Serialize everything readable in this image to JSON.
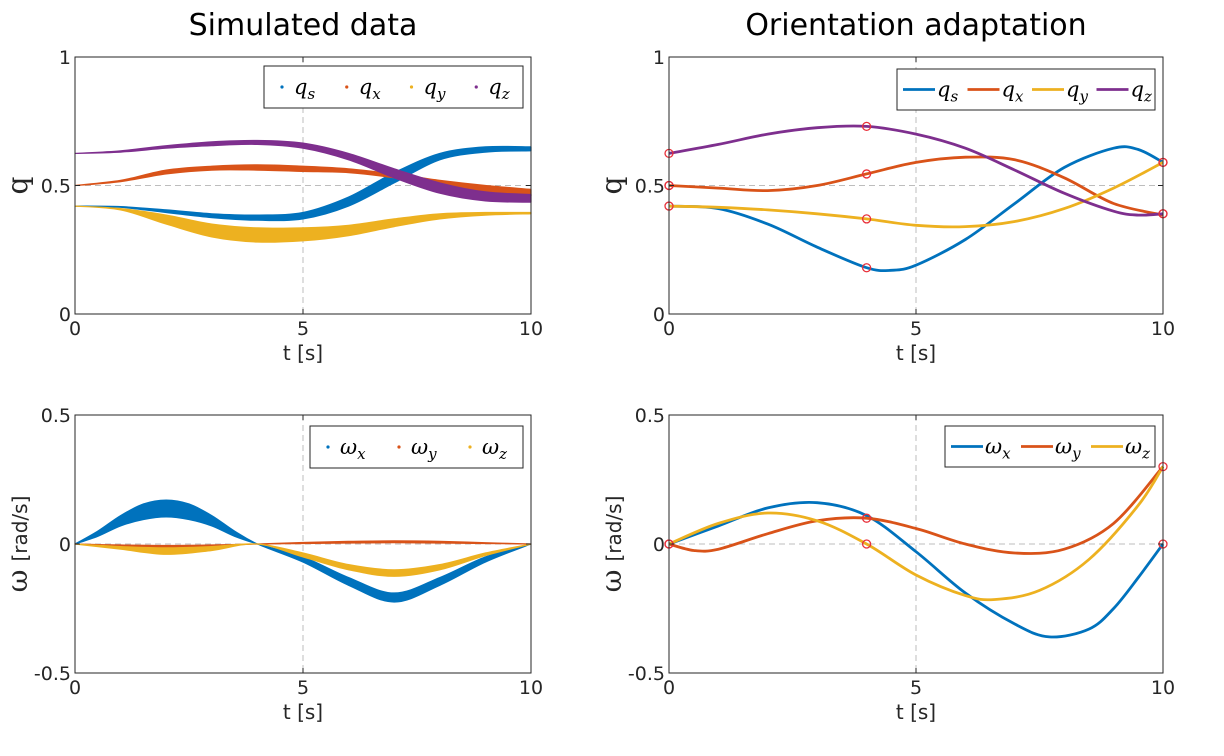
{
  "figure": {
    "column_titles": [
      "Simulated data",
      "Orientation adaptation"
    ]
  },
  "colors": {
    "s": "#0072BD",
    "x": "#D95319",
    "y": "#EDB120",
    "z": "#7E2F8E",
    "marker": "#E8303A",
    "axis": "#262626",
    "grid": "#BDBDBD"
  },
  "chart_data": [
    {
      "id": "sim_q",
      "type": "line",
      "style": "band",
      "xlabel": "t [s]",
      "ylabel": "q",
      "ylabel_unit": "",
      "xlim": [
        0,
        10
      ],
      "ylim": [
        0,
        1
      ],
      "xticks": [
        0,
        5,
        10
      ],
      "yticks": [
        0,
        0.5,
        1
      ],
      "tick_labels_y": [
        "0",
        "0.5",
        "1"
      ],
      "grid_x": [
        5
      ],
      "grid_y": [
        0.5
      ],
      "legend": {
        "position": "top-right",
        "style": "dot"
      },
      "series": [
        {
          "name": "q",
          "sub": "s",
          "color_key": "s",
          "x": [
            0,
            1,
            2,
            3,
            4,
            5,
            6,
            7,
            8,
            9,
            10
          ],
          "y_low": [
            0.42,
            0.415,
            0.395,
            0.375,
            0.365,
            0.37,
            0.42,
            0.51,
            0.6,
            0.63,
            0.635
          ],
          "y_high": [
            0.42,
            0.418,
            0.405,
            0.39,
            0.385,
            0.395,
            0.455,
            0.55,
            0.625,
            0.65,
            0.65
          ]
        },
        {
          "name": "q",
          "sub": "x",
          "color_key": "x",
          "x": [
            0,
            1,
            2,
            3,
            4,
            5,
            6,
            7,
            8,
            9,
            10
          ],
          "y_low": [
            0.5,
            0.515,
            0.545,
            0.56,
            0.56,
            0.555,
            0.55,
            0.53,
            0.5,
            0.475,
            0.46
          ],
          "y_high": [
            0.5,
            0.52,
            0.56,
            0.575,
            0.58,
            0.575,
            0.565,
            0.545,
            0.52,
            0.5,
            0.485
          ]
        },
        {
          "name": "q",
          "sub": "y",
          "color_key": "y",
          "x": [
            0,
            1,
            2,
            3,
            4,
            5,
            6,
            7,
            8,
            9,
            10
          ],
          "y_low": [
            0.42,
            0.405,
            0.35,
            0.3,
            0.28,
            0.285,
            0.305,
            0.34,
            0.37,
            0.385,
            0.39
          ],
          "y_high": [
            0.42,
            0.41,
            0.385,
            0.35,
            0.335,
            0.335,
            0.345,
            0.37,
            0.39,
            0.395,
            0.395
          ]
        },
        {
          "name": "q",
          "sub": "z",
          "color_key": "z",
          "x": [
            0,
            1,
            2,
            3,
            4,
            5,
            6,
            7,
            8,
            9,
            10
          ],
          "y_low": [
            0.625,
            0.63,
            0.645,
            0.655,
            0.66,
            0.645,
            0.6,
            0.53,
            0.47,
            0.44,
            0.435
          ],
          "y_high": [
            0.625,
            0.635,
            0.655,
            0.67,
            0.675,
            0.665,
            0.625,
            0.565,
            0.51,
            0.475,
            0.465
          ]
        }
      ]
    },
    {
      "id": "adapt_q",
      "type": "line",
      "style": "line",
      "xlabel": "t [s]",
      "ylabel": "q",
      "ylabel_unit": "",
      "xlim": [
        0,
        10
      ],
      "ylim": [
        0,
        1
      ],
      "xticks": [
        0,
        5,
        10
      ],
      "yticks": [
        0,
        0.5,
        1
      ],
      "tick_labels_y": [
        "0",
        "0.5",
        "1"
      ],
      "grid_x": [
        5
      ],
      "grid_y": [
        0.5
      ],
      "legend": {
        "position": "top-right",
        "style": "line"
      },
      "series": [
        {
          "name": "q",
          "sub": "s",
          "color_key": "s",
          "x": [
            0,
            1,
            2,
            3,
            4,
            4.5,
            5,
            6,
            7,
            8,
            9,
            9.5,
            10
          ],
          "y": [
            0.42,
            0.41,
            0.35,
            0.26,
            0.18,
            0.17,
            0.19,
            0.29,
            0.43,
            0.57,
            0.645,
            0.64,
            0.59
          ]
        },
        {
          "name": "q",
          "sub": "x",
          "color_key": "x",
          "x": [
            0,
            1,
            2,
            3,
            4,
            5,
            6,
            7,
            8,
            9,
            10
          ],
          "y": [
            0.5,
            0.49,
            0.48,
            0.5,
            0.545,
            0.59,
            0.61,
            0.6,
            0.53,
            0.43,
            0.385
          ]
        },
        {
          "name": "q",
          "sub": "y",
          "color_key": "y",
          "x": [
            0,
            1,
            2,
            3,
            4,
            5,
            6,
            7,
            8,
            9,
            10
          ],
          "y": [
            0.42,
            0.415,
            0.405,
            0.39,
            0.37,
            0.345,
            0.34,
            0.36,
            0.41,
            0.49,
            0.59
          ]
        },
        {
          "name": "q",
          "sub": "z",
          "color_key": "z",
          "x": [
            0,
            1,
            2,
            3,
            4,
            5,
            6,
            7,
            8,
            9,
            9.5,
            10
          ],
          "y": [
            0.625,
            0.66,
            0.7,
            0.725,
            0.73,
            0.7,
            0.645,
            0.56,
            0.47,
            0.4,
            0.385,
            0.39
          ]
        }
      ],
      "markers": {
        "x": [
          0,
          0,
          0,
          0,
          4,
          4,
          4,
          4,
          10,
          10,
          10,
          10
        ],
        "y": [
          0.42,
          0.5,
          0.5,
          0.625,
          0.18,
          0.37,
          0.545,
          0.73,
          0.59,
          0.59,
          0.39,
          0.39
        ]
      }
    },
    {
      "id": "sim_w",
      "type": "line",
      "style": "band",
      "xlabel": "t [s]",
      "ylabel": "ω",
      "ylabel_unit": "[rad/s]",
      "xlim": [
        0,
        10
      ],
      "ylim": [
        -0.5,
        0.5
      ],
      "xticks": [
        0,
        5,
        10
      ],
      "yticks": [
        -0.5,
        0,
        0.5
      ],
      "tick_labels_y": [
        "-0.5",
        "0",
        "0.5"
      ],
      "grid_x": [
        5
      ],
      "grid_y": [
        0
      ],
      "legend": {
        "position": "top-right",
        "style": "dot"
      },
      "series": [
        {
          "name": "ω",
          "sub": "x",
          "color_key": "s",
          "x": [
            0,
            0.5,
            1,
            1.5,
            2,
            2.5,
            3,
            3.5,
            4,
            5,
            6,
            7,
            8,
            9,
            10
          ],
          "y_low": [
            0,
            0.03,
            0.07,
            0.095,
            0.105,
            0.095,
            0.07,
            0.03,
            0,
            -0.05,
            -0.13,
            -0.19,
            -0.13,
            -0.05,
            0
          ],
          "y_high": [
            0,
            0.05,
            0.11,
            0.155,
            0.17,
            0.155,
            0.11,
            0.05,
            0,
            -0.07,
            -0.16,
            -0.225,
            -0.16,
            -0.07,
            0
          ]
        },
        {
          "name": "ω",
          "sub": "y",
          "color_key": "x",
          "x": [
            0,
            1,
            2,
            3,
            4,
            5,
            6,
            7,
            8,
            9,
            10
          ],
          "y_low": [
            0,
            -0.008,
            -0.015,
            -0.008,
            0,
            0.002,
            0.004,
            0.005,
            0.004,
            0.002,
            0
          ],
          "y_high": [
            0,
            -0.004,
            -0.006,
            -0.004,
            0,
            0.006,
            0.01,
            0.012,
            0.01,
            0.005,
            0
          ]
        },
        {
          "name": "ω",
          "sub": "z",
          "color_key": "y",
          "x": [
            0,
            1,
            2,
            3,
            4,
            5,
            6,
            7,
            8,
            9,
            10
          ],
          "y_low": [
            0,
            -0.02,
            -0.04,
            -0.025,
            0,
            -0.05,
            -0.1,
            -0.125,
            -0.1,
            -0.045,
            0
          ],
          "y_high": [
            0,
            -0.01,
            -0.015,
            -0.01,
            0,
            -0.035,
            -0.08,
            -0.1,
            -0.08,
            -0.035,
            0
          ]
        }
      ]
    },
    {
      "id": "adapt_w",
      "type": "line",
      "style": "line",
      "xlabel": "t [s]",
      "ylabel": "ω",
      "ylabel_unit": "[rad/s]",
      "xlim": [
        0,
        10
      ],
      "ylim": [
        -0.5,
        0.5
      ],
      "xticks": [
        0,
        5,
        10
      ],
      "yticks": [
        -0.5,
        0,
        0.5
      ],
      "tick_labels_y": [
        "-0.5",
        "0",
        "0.5"
      ],
      "grid_x": [
        5
      ],
      "grid_y": [
        0
      ],
      "legend": {
        "position": "top-right",
        "style": "line"
      },
      "series": [
        {
          "name": "ω",
          "sub": "x",
          "color_key": "s",
          "x": [
            0,
            1,
            2,
            3,
            4,
            5,
            6,
            7,
            7.7,
            8.5,
            9,
            9.5,
            10
          ],
          "y": [
            0,
            0.07,
            0.14,
            0.16,
            0.11,
            -0.03,
            -0.19,
            -0.31,
            -0.36,
            -0.33,
            -0.25,
            -0.13,
            0
          ]
        },
        {
          "name": "ω",
          "sub": "y",
          "color_key": "x",
          "x": [
            0,
            0.5,
            1,
            2,
            3,
            4,
            5,
            6,
            7,
            8,
            9,
            10
          ],
          "y": [
            0,
            -0.025,
            -0.02,
            0.04,
            0.09,
            0.1,
            0.06,
            0,
            -0.035,
            -0.02,
            0.08,
            0.3
          ]
        },
        {
          "name": "ω",
          "sub": "z",
          "color_key": "y",
          "x": [
            0,
            1,
            2,
            3,
            4,
            5,
            6,
            6.6,
            7.5,
            8.5,
            9.5,
            10
          ],
          "y": [
            0,
            0.08,
            0.12,
            0.09,
            0,
            -0.12,
            -0.2,
            -0.215,
            -0.18,
            -0.06,
            0.15,
            0.3
          ]
        }
      ],
      "markers": {
        "x": [
          0,
          0,
          4,
          4,
          10,
          10
        ],
        "y": [
          0,
          0,
          0.1,
          0,
          0.3,
          0
        ]
      }
    }
  ]
}
